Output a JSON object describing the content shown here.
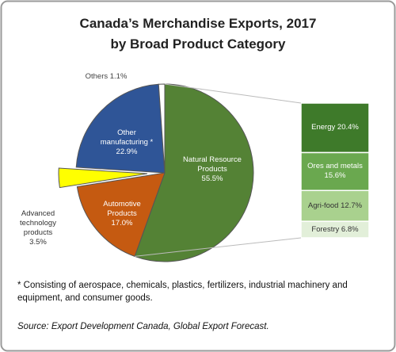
{
  "chart_data": {
    "type": "pie-of-bar",
    "title": "Canada’s Merchandise Exports, 2017",
    "subtitle": "by Broad Product Category",
    "categories": [
      "Natural Resource Products",
      "Automotive Products",
      "Advanced technology products",
      "Other manufacturing *",
      "Others"
    ],
    "values": [
      55.5,
      17.0,
      3.5,
      22.9,
      1.1
    ],
    "value_labels": [
      "55.5%",
      "17.0%",
      "3.5%",
      "22.9%",
      "1.1%"
    ],
    "colors": [
      "#548235",
      "#c55a11",
      "#ffff00",
      "#2f5597",
      "#ffffff"
    ],
    "breakdown": {
      "categories": [
        "Energy",
        "Ores and metals",
        "Agri-food",
        "Forestry"
      ],
      "values": [
        20.4,
        15.6,
        12.7,
        6.8
      ],
      "value_labels": [
        "20.4%",
        "15.6%",
        "12.7%",
        "6.8%"
      ],
      "colors": [
        "#3e7a2a",
        "#6aa84f",
        "#a9d18e",
        "#e2efd9"
      ]
    },
    "footnote": "* Consisting of aerospace, chemicals, plastics, fertilizers, industrial machinery and equipment, and consumer goods.",
    "source": "Source:  Export Development Canada, Global Export Forecast."
  }
}
